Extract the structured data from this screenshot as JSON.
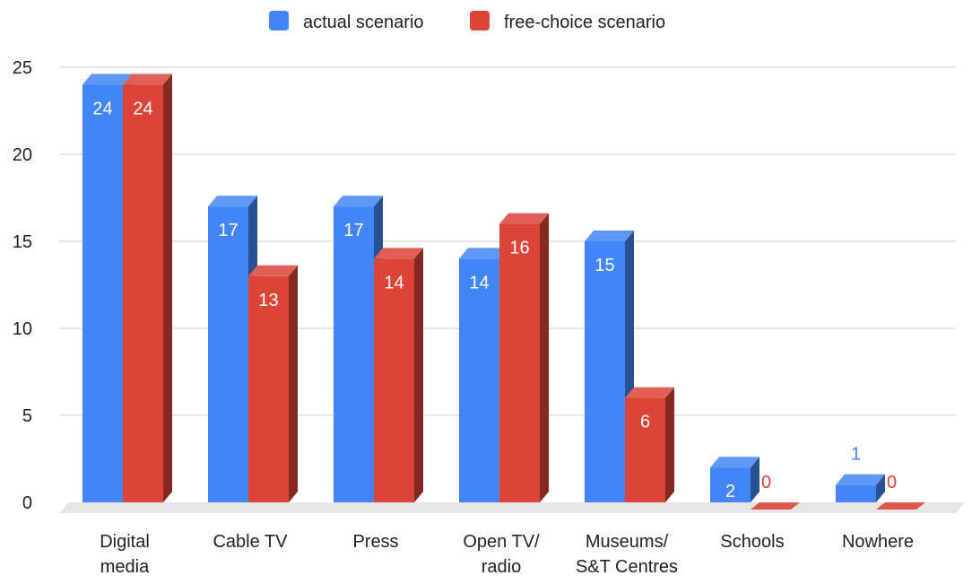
{
  "chart_data": {
    "type": "bar",
    "title": "",
    "xlabel": "",
    "ylabel": "",
    "categories": [
      [
        "Digital",
        "media"
      ],
      [
        "Cable TV"
      ],
      [
        "Press"
      ],
      [
        "Open TV/",
        "radio"
      ],
      [
        "Museums/",
        "S&T Centres"
      ],
      [
        "Schools"
      ],
      [
        "Nowhere"
      ]
    ],
    "series": [
      {
        "name": "actual scenario",
        "color": "#4285f4",
        "values": [
          24,
          17,
          17,
          14,
          15,
          2,
          1
        ]
      },
      {
        "name": "free-choice scenario",
        "color": "#db4437",
        "values": [
          24,
          13,
          14,
          16,
          6,
          0,
          0
        ]
      }
    ],
    "data_labels": [
      [
        "24",
        "17",
        "17",
        "14",
        "15",
        "2",
        "1"
      ],
      [
        "24",
        "13",
        "14",
        "16",
        "6",
        "0",
        "0"
      ]
    ],
    "yticks": [
      0,
      5,
      10,
      15,
      20,
      25
    ],
    "ylim": [
      0,
      25
    ],
    "grid": true,
    "legend_position": "top-center",
    "style": "3d"
  }
}
